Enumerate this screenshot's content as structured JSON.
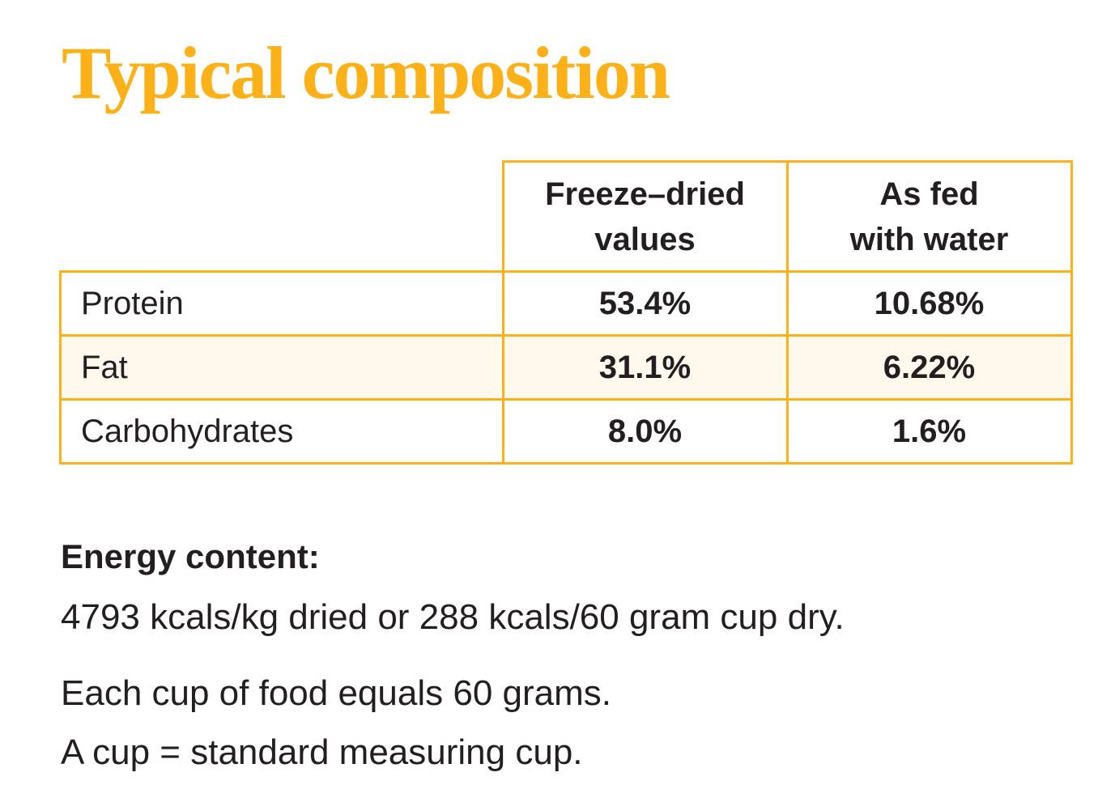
{
  "title": "Typical composition",
  "colors": {
    "accent": "#fbb117",
    "highlight_row": "#fff8ec",
    "text": "#231f20"
  },
  "table": {
    "headers": [
      {
        "line1": "Freeze–dried",
        "line2": "values"
      },
      {
        "line1": "As fed",
        "line2": "with water"
      }
    ],
    "rows": [
      {
        "label": "Protein",
        "freeze_dried": "53.4%",
        "as_fed": "10.68%"
      },
      {
        "label": "Fat",
        "freeze_dried": "31.1%",
        "as_fed": "6.22%"
      },
      {
        "label": "Carbohydrates",
        "freeze_dried": "8.0%",
        "as_fed": "1.6%"
      }
    ]
  },
  "energy": {
    "heading": "Energy content:",
    "text": "4793 kcals/kg dried or 288 kcals/60 gram cup dry."
  },
  "notes": [
    "Each cup of food equals 60 grams.",
    "A cup = standard measuring cup."
  ]
}
